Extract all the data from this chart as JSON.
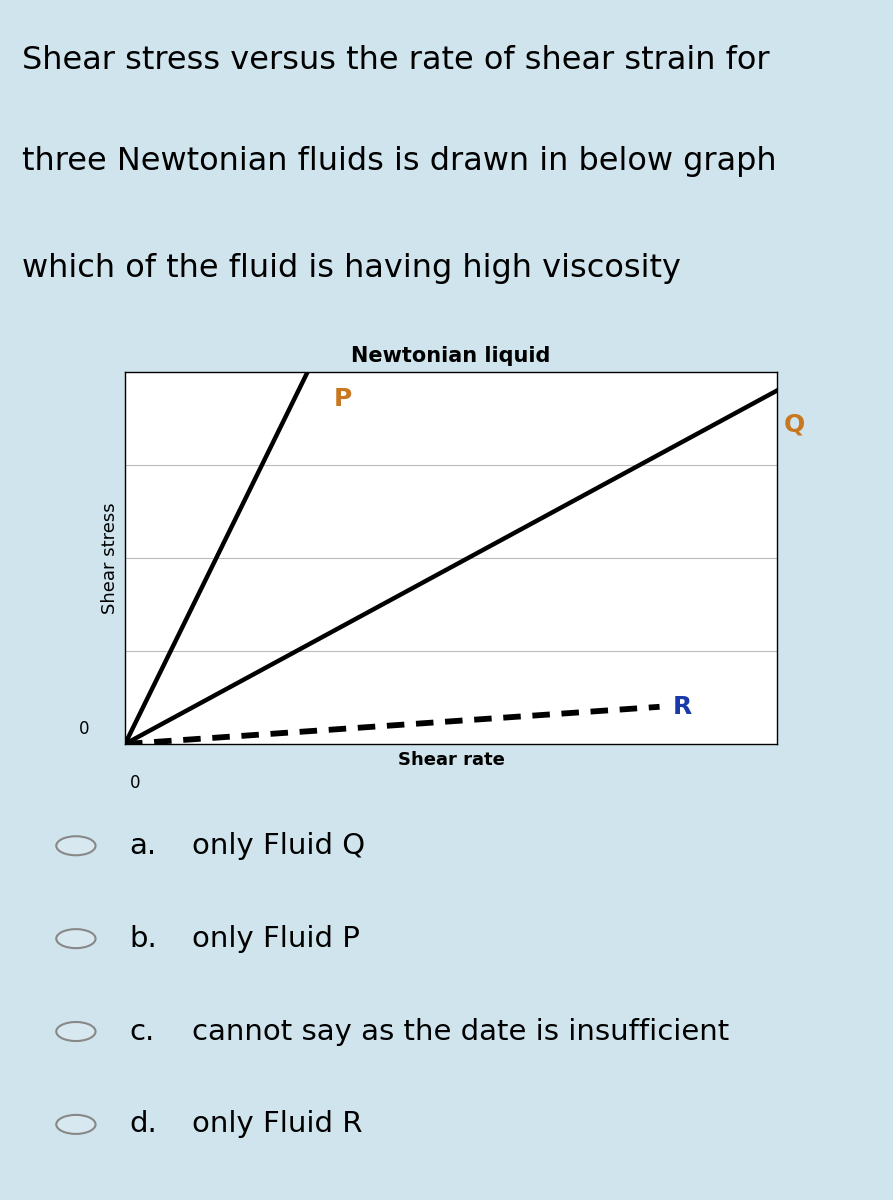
{
  "background_color": "#cfe4ed",
  "question_text_line1": "Shear stress versus the rate of shear strain for",
  "question_text_line2": "three Newtonian fluids is drawn in below graph",
  "question_text_line3": "which of the fluid is having high viscosity",
  "graph_title": "Newtonian liquid",
  "xlabel": "Shear rate",
  "ylabel": "Shear stress",
  "graph_bg": "#ffffff",
  "fluid_P": {
    "x": [
      0,
      0.28
    ],
    "y": [
      0,
      1.0
    ],
    "color": "#000000",
    "label": "P",
    "label_color": "#c87820"
  },
  "fluid_Q": {
    "x": [
      0,
      1.0
    ],
    "y": [
      0,
      0.95
    ],
    "color": "#000000",
    "label": "Q",
    "label_color": "#c87820"
  },
  "fluid_R": {
    "x": [
      0,
      0.82
    ],
    "y": [
      0,
      0.1
    ],
    "color": "#000000",
    "label": "R",
    "label_color": "#1a3aaa"
  },
  "options": [
    {
      "key": "a.",
      "text": "only Fluid Q"
    },
    {
      "key": "b.",
      "text": "only Fluid P"
    },
    {
      "key": "c.",
      "text": "cannot say as the date is insufficient"
    },
    {
      "key": "d.",
      "text": "only Fluid R"
    }
  ],
  "linewidth": 3.2,
  "R_dash_on": 3,
  "R_dash_off": 2,
  "text_fontsize": 23,
  "option_fontsize": 21,
  "graph_title_fontsize": 15,
  "label_fontsize": 18,
  "axis_label_fontsize": 13
}
